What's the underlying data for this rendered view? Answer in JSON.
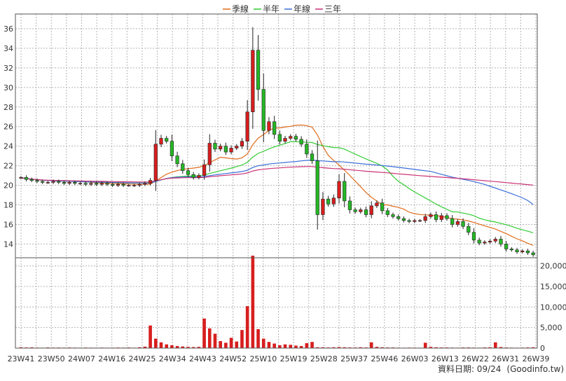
{
  "legend": [
    {
      "label": "季線",
      "color": "#e06c1c"
    },
    {
      "label": "半年",
      "color": "#33cc33"
    },
    {
      "label": "年線",
      "color": "#3a6fd8"
    },
    {
      "label": "三年",
      "color": "#cc3377"
    }
  ],
  "footer": {
    "date_label": "資料日期: 09/24",
    "source_label": "(Goodinfo.tw)"
  },
  "colors": {
    "up": "#d81e1e",
    "down": "#25b825",
    "volume": "#d81e1e",
    "grid": "#b4b4b4"
  },
  "chart_data": [
    {
      "type": "candlestick",
      "title": "",
      "x_tick_labels": [
        "23W41",
        "23W50",
        "24W07",
        "24W16",
        "24W25",
        "24W34",
        "24W43",
        "24W52",
        "25W10",
        "25W19",
        "25W28",
        "25W37",
        "25W46",
        "26W03",
        "26W13",
        "26W22",
        "26W31",
        "26W39"
      ],
      "y_ticks": [
        14,
        16,
        18,
        20,
        22,
        24,
        26,
        28,
        30,
        32,
        34,
        36
      ],
      "ylim": [
        12.6,
        37.5
      ],
      "grid": true,
      "series_close_weekly_approx": [
        20.8,
        20.6,
        20.5,
        20.4,
        20.3,
        20.3,
        20.4,
        20.3,
        20.2,
        20.3,
        20.2,
        20.2,
        20.1,
        20.2,
        20.1,
        20.2,
        20.1,
        20.0,
        20.1,
        20.0,
        20.0,
        20.0,
        20.1,
        20.2,
        20.5,
        24.2,
        24.8,
        24.5,
        23.0,
        22.2,
        21.5,
        21.1,
        20.8,
        21.0,
        22.1,
        24.3,
        23.7,
        24.0,
        23.4,
        23.8,
        24.0,
        24.5,
        27.5,
        33.8,
        29.8,
        25.6,
        26.5,
        25.2,
        24.5,
        24.8,
        25.0,
        24.7,
        24.2,
        23.2,
        22.5,
        17.0,
        18.6,
        18.1,
        18.7,
        20.4,
        18.4,
        17.5,
        17.3,
        17.5,
        17.0,
        17.9,
        18.2,
        17.4,
        17.0,
        16.8,
        16.6,
        16.4,
        16.3,
        16.4,
        16.4,
        16.8,
        17.0,
        16.5,
        16.9,
        16.6,
        16.0,
        16.3,
        15.8,
        15.2,
        14.4,
        14.1,
        14.2,
        14.3,
        14.5,
        14.0,
        13.5,
        13.4,
        13.2,
        13.3,
        13.1,
        12.9
      ],
      "moving_averages": [
        {
          "name": "季線"
        },
        {
          "name": "半年"
        },
        {
          "name": "年線"
        },
        {
          "name": "三年"
        }
      ]
    },
    {
      "type": "bar",
      "title": "",
      "y_ticks": [
        "0",
        "5,000",
        "10,000",
        "15,000",
        "20,000"
      ],
      "ylim": [
        0,
        22000
      ],
      "values": [
        200,
        150,
        180,
        120,
        100,
        150,
        120,
        130,
        110,
        140,
        120,
        100,
        130,
        110,
        100,
        120,
        100,
        110,
        130,
        120,
        150,
        100,
        200,
        350,
        5500,
        2300,
        1400,
        900,
        700,
        500,
        400,
        300,
        250,
        300,
        7200,
        4800,
        3500,
        1700,
        1300,
        2500,
        1600,
        4400,
        10200,
        22500,
        4600,
        2300,
        1500,
        1100,
        700,
        900,
        800,
        600,
        500,
        1200,
        1500,
        200,
        200,
        150,
        200,
        250,
        200,
        150,
        150,
        200,
        150,
        1400,
        300,
        200,
        150,
        150,
        120,
        100,
        120,
        120,
        100,
        1300,
        300,
        200,
        150,
        150,
        120,
        100,
        150,
        150,
        120,
        100,
        150,
        200,
        1400,
        250,
        150,
        120,
        100,
        120,
        150,
        200
      ]
    }
  ]
}
